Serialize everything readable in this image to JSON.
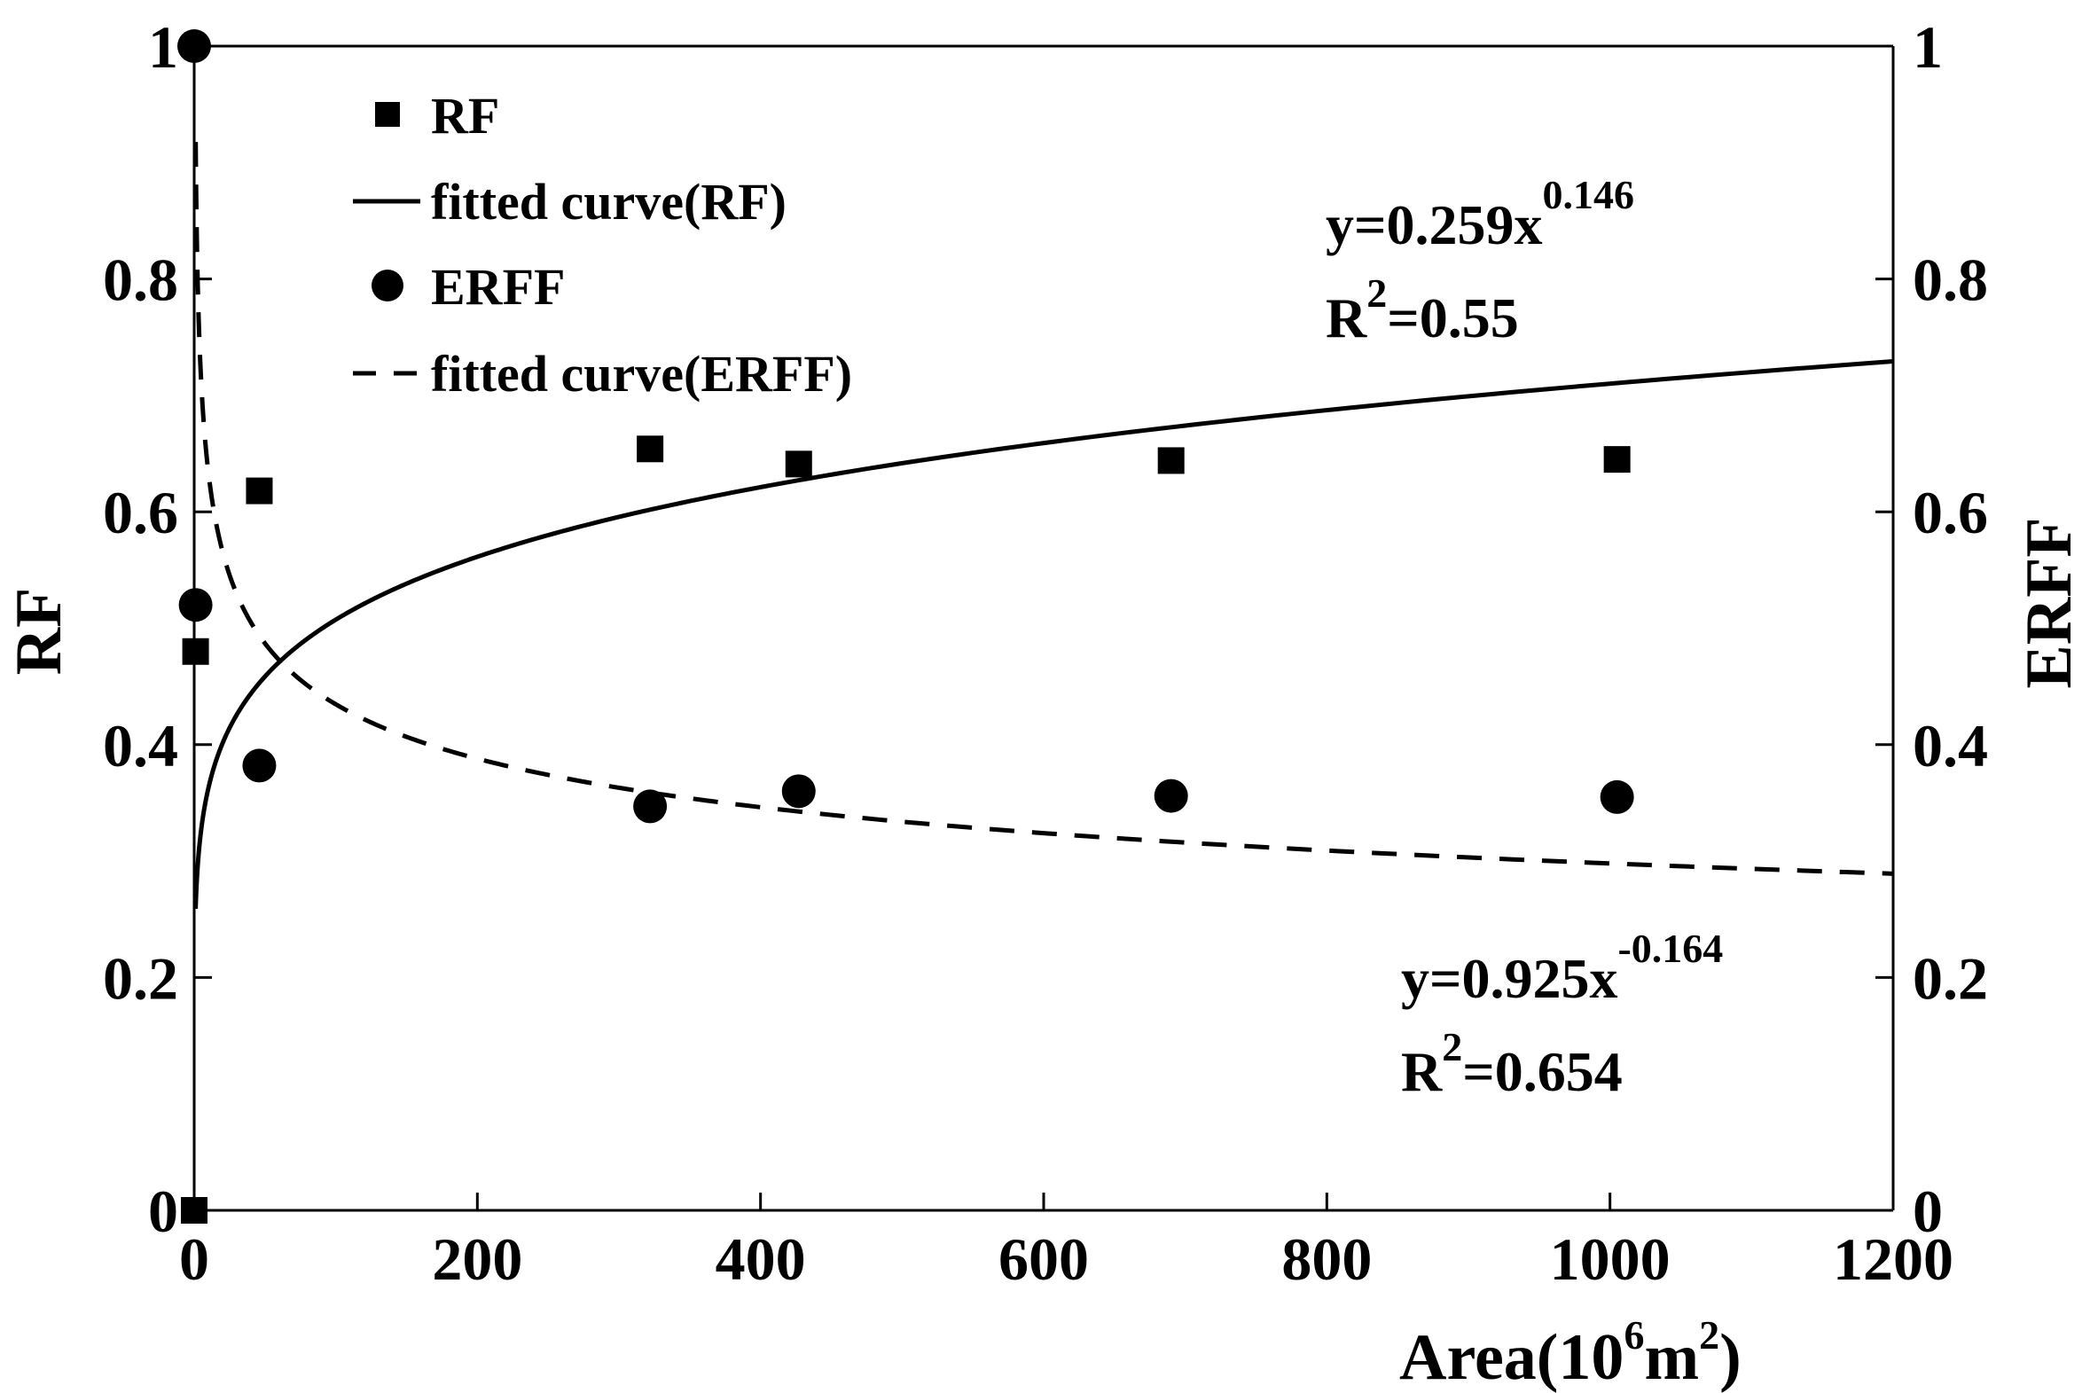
{
  "chart_data": {
    "type": "scatter",
    "x_label": {
      "text": "Area(10",
      "sup1": "6",
      "mid": "m",
      "sup2": "2",
      "end": ")"
    },
    "y_left_label": "RF",
    "y_right_label": "ERFF",
    "xlim": [
      0,
      1200
    ],
    "ylim_left": [
      0,
      1
    ],
    "ylim_right": [
      0,
      1
    ],
    "x_ticks": [
      0,
      200,
      400,
      600,
      800,
      1000,
      1200
    ],
    "y_ticks": [
      0,
      0.2,
      0.4,
      0.6,
      0.8,
      1
    ],
    "x_tick_labels": [
      "0",
      "200",
      "400",
      "600",
      "800",
      "1000",
      "1200"
    ],
    "y_tick_labels": [
      "0",
      "0.2",
      "0.4",
      "0.6",
      "0.8",
      "1"
    ],
    "series": [
      {
        "name": "RF",
        "marker": "square",
        "axis": "left",
        "points": [
          [
            0,
            0
          ],
          [
            1,
            0.48
          ],
          [
            46,
            0.618
          ],
          [
            322,
            0.654
          ],
          [
            427,
            0.641
          ],
          [
            690,
            0.644
          ],
          [
            1005,
            0.645
          ]
        ]
      },
      {
        "name": "ERFF",
        "marker": "circle",
        "axis": "right",
        "points": [
          [
            0,
            1.0
          ],
          [
            1,
            0.52
          ],
          [
            46,
            0.382
          ],
          [
            322,
            0.347
          ],
          [
            427,
            0.36
          ],
          [
            690,
            0.356
          ],
          [
            1005,
            0.355
          ]
        ]
      }
    ],
    "fits": [
      {
        "name": "fitted curve(RF)",
        "style": "solid",
        "a": 0.259,
        "b": 0.146,
        "x_from": 1,
        "x_to": 1200
      },
      {
        "name": "fitted curve(ERFF)",
        "style": "dashed",
        "a": 0.925,
        "b": -0.164,
        "x_from": 1.05,
        "x_to": 1200
      }
    ],
    "legend": {
      "position": "top-left",
      "entries": [
        "RF",
        "fitted curve(RF)",
        "ERFF",
        "fitted curve(ERFF)"
      ]
    },
    "annotations": {
      "rf_equation": {
        "prefix": "y=0.259x",
        "exponent": "0.146",
        "r2_prefix": "R",
        "r2_sup": "2",
        "r2_value": "=0.55"
      },
      "erff_equation": {
        "prefix": "y=0.925x",
        "exponent": "-0.164",
        "r2_prefix": "R",
        "r2_sup": "2",
        "r2_value": "=0.654"
      }
    }
  }
}
